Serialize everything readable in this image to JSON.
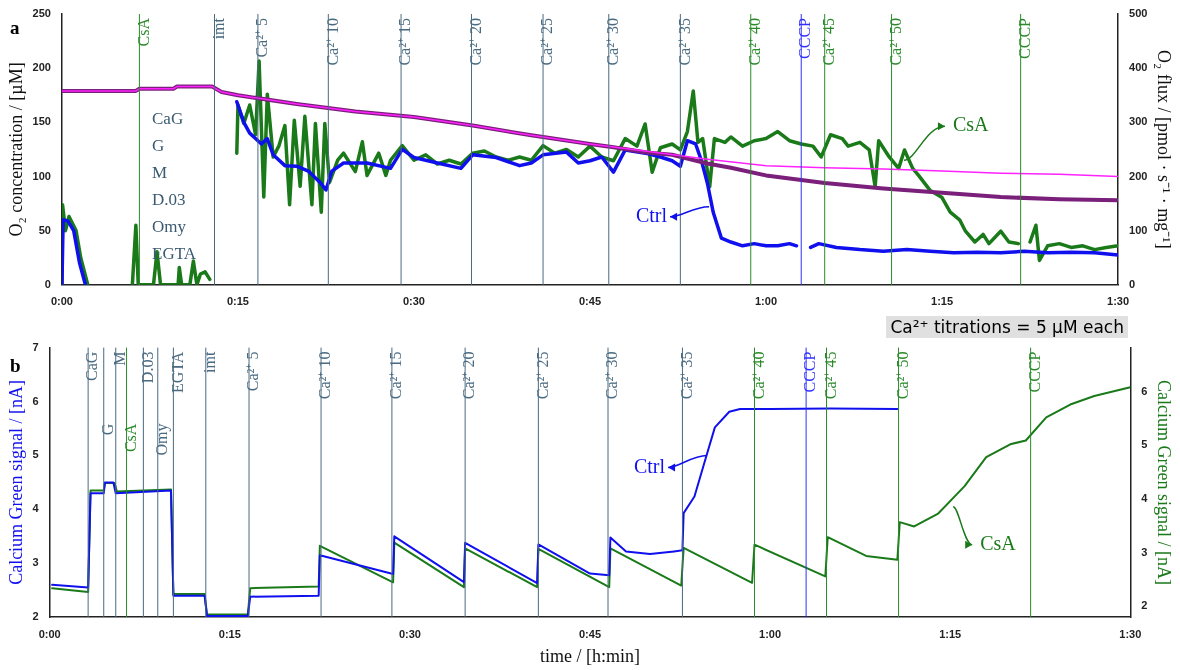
{
  "chart_data": [
    {
      "type": "line",
      "title": "a",
      "ylabel": "O₂ concentration / [µM]",
      "y2label": "O₂ flux / [pmol · s⁻¹ · mg⁻¹]",
      "xlim": [
        0,
        90
      ],
      "xticks": [
        {
          "value": 0,
          "label": "0:00"
        },
        {
          "value": 15,
          "label": "0:15"
        },
        {
          "value": 30,
          "label": "0:30"
        },
        {
          "value": 45,
          "label": "0:45"
        },
        {
          "value": 60,
          "label": "1:00"
        },
        {
          "value": 75,
          "label": "1:15"
        },
        {
          "value": 90,
          "label": "1:30"
        }
      ],
      "ylim": [
        0,
        250
      ],
      "yticks": [
        0,
        50,
        100,
        150,
        200,
        250
      ],
      "y2lim": [
        0,
        500
      ],
      "y2ticks": [
        0,
        100,
        200,
        300,
        400,
        500
      ],
      "grid": false,
      "legend": false,
      "marker": "none",
      "line_style": "solid",
      "series": [
        {
          "color": "#ff22ff",
          "x": [
            0,
            6.3,
            6.6,
            9.5,
            9.8,
            12.8,
            13.6,
            15,
            20,
            25,
            30,
            35,
            40,
            45,
            50,
            55,
            60,
            65,
            70,
            75,
            80,
            85,
            90
          ],
          "values": [
            179,
            179,
            181,
            181,
            183,
            183,
            178,
            175,
            167,
            160,
            155,
            147,
            138,
            130,
            123,
            116,
            110,
            108,
            107,
            105,
            103,
            102,
            100
          ]
        },
        {
          "color": "#7a1f7a",
          "x": [
            0,
            6.3,
            6.6,
            9.5,
            9.8,
            12.8,
            13.6,
            15,
            20,
            25,
            30,
            35,
            40,
            45,
            47,
            50,
            52,
            55,
            57,
            60,
            65,
            70,
            75,
            80,
            85,
            90
          ],
          "values": [
            179,
            179,
            181,
            181,
            183,
            183,
            178,
            175,
            167,
            160,
            155,
            147,
            138,
            130,
            127,
            122,
            120,
            112,
            108,
            101,
            94,
            89,
            85,
            81,
            79,
            78
          ]
        },
        {
          "color": "#1010ee",
          "axis": "y2",
          "x": [
            0,
            0.1,
            0.5,
            1,
            1.5,
            2,
            2.1,
            14.9,
            15.5,
            16,
            17,
            17.5,
            18,
            19,
            20,
            21,
            22,
            22.5,
            23,
            24,
            26,
            28,
            29,
            30,
            32,
            34,
            35,
            37,
            39,
            40,
            41,
            43,
            44,
            45,
            46,
            47,
            48,
            50,
            51,
            52,
            52.7,
            53.3,
            54,
            54.5,
            55,
            55.5,
            56.2,
            57,
            58,
            59,
            60,
            61,
            62,
            62.6,
            63,
            63.8,
            64.5,
            66,
            68,
            70,
            72,
            74,
            76,
            78,
            80,
            82,
            84,
            86,
            88,
            90
          ],
          "values": [
            0,
            120,
            118,
            100,
            40,
            0,
            null,
            338,
            300,
            280,
            260,
            270,
            240,
            220,
            219,
            210,
            189,
            175,
            210,
            225,
            225,
            215,
            250,
            235,
            225,
            215,
            240,
            235,
            220,
            225,
            240,
            245,
            225,
            229,
            236,
            208,
            249,
            242,
            236,
            229,
            219,
            266,
            260,
            229,
            188,
            134,
            86,
            79,
            72,
            76,
            72,
            72,
            76,
            72,
            null,
            69,
            76,
            69,
            65,
            62,
            65,
            62,
            59,
            60,
            59,
            62,
            59,
            60,
            59,
            55
          ]
        },
        {
          "color": "#1a7a1a",
          "axis": "y2",
          "x": [
            0,
            0.05,
            0.3,
            0.6,
            1.2,
            1.6,
            2.2,
            2.3,
            6,
            6.3,
            6.5,
            7.8,
            8.1,
            8.4,
            9.9,
            10,
            10.2,
            10.9,
            11.2,
            11.5,
            11.8,
            12.2,
            12.6,
            12.7,
            14.9,
            15,
            15.5,
            16,
            16.5,
            16.8,
            17.2,
            17.5,
            18,
            18.5,
            19,
            19.4,
            19.8,
            20.3,
            20.7,
            21.3,
            21.6,
            22.1,
            22.4,
            22.8,
            23.5,
            24,
            25,
            25.6,
            26,
            27,
            27.6,
            28,
            29,
            30,
            31,
            32,
            33,
            34,
            35,
            36,
            37,
            38,
            39,
            40,
            41,
            42,
            43,
            44,
            45,
            46,
            47,
            48,
            49,
            49.7,
            50.3,
            51,
            52,
            52.7,
            53.3,
            53.8,
            54.2,
            54.6,
            55.2,
            55.6,
            56.5,
            57,
            58,
            59,
            60,
            61,
            62,
            63,
            64,
            64.7,
            65.5,
            66.5,
            67,
            68,
            68.8,
            69.3,
            69.6,
            70.5,
            71.3,
            71.8,
            72.5,
            73,
            74,
            75,
            75.7,
            76.5,
            77,
            77.8,
            78.5,
            79,
            80,
            80.7,
            81.5,
            82,
            82.5,
            83,
            83.3,
            84,
            85,
            86,
            87,
            88,
            89,
            90
          ],
          "values": [
            0,
            148,
            100,
            126,
            100,
            50,
            0,
            null,
            0,
            110,
            0,
            0,
            61,
            0,
            0,
            32,
            0,
            0,
            44,
            0,
            20,
            24,
            10,
            null,
            243,
            332,
            298,
            332,
            277,
            413,
            162,
            352,
            236,
            257,
            294,
            148,
            304,
            182,
            311,
            148,
            298,
            134,
            298,
            189,
            230,
            243,
            209,
            264,
            202,
            243,
            202,
            230,
            257,
            230,
            240,
            223,
            230,
            223,
            243,
            247,
            236,
            230,
            236,
            230,
            257,
            243,
            250,
            236,
            256,
            236,
            229,
            270,
            256,
            297,
            208,
            253,
            260,
            249,
            283,
            358,
            263,
            270,
            181,
            270,
            263,
            273,
            256,
            266,
            270,
            283,
            266,
            260,
            256,
            236,
            277,
            270,
            256,
            263,
            249,
            181,
            266,
            236,
            215,
            249,
            215,
            202,
            174,
            161,
            134,
            120,
            99,
            79,
            93,
            76,
            99,
            79,
            76,
            null,
            79,
            110,
            45,
            72,
            76,
            69,
            72,
            65,
            69,
            72
          ]
        }
      ],
      "ref_lines": [
        {
          "axis": "x",
          "value": 6.6,
          "label": "CsA",
          "color": "#2a8a2a"
        },
        {
          "axis": "x",
          "value": 13,
          "label": "imt",
          "color": "#4a6a80"
        },
        {
          "axis": "x",
          "value": 16.7,
          "label": "Ca²⁺ 5",
          "color": "#4a6a80"
        },
        {
          "axis": "x",
          "value": 22.7,
          "label": "Ca²⁺ 10",
          "color": "#4a6a80"
        },
        {
          "axis": "x",
          "value": 28.9,
          "label": "Ca²⁺ 15",
          "color": "#4a6a80"
        },
        {
          "axis": "x",
          "value": 34.9,
          "label": "Ca²⁺ 20",
          "color": "#4a6a80"
        },
        {
          "axis": "x",
          "value": 41,
          "label": "Ca²⁺ 25",
          "color": "#4a6a80"
        },
        {
          "axis": "x",
          "value": 46.6,
          "label": "Ca²⁺ 30",
          "color": "#4a6a80"
        },
        {
          "axis": "x",
          "value": 52.7,
          "label": "Ca²⁺ 35",
          "color": "#4a6a80"
        },
        {
          "axis": "x",
          "value": 58.7,
          "label": "Ca²⁺ 40",
          "color": "#2a8a2a"
        },
        {
          "axis": "x",
          "value": 63,
          "label": "CCCP",
          "color": "#3030ff"
        },
        {
          "axis": "x",
          "value": 65,
          "label": "Ca²⁺ 45",
          "color": "#2a8a2a"
        },
        {
          "axis": "x",
          "value": 70.7,
          "label": "Ca²⁺ 50",
          "color": "#2a8a2a"
        },
        {
          "axis": "x",
          "value": 81.7,
          "label": "CCCP",
          "color": "#2a8a2a"
        }
      ],
      "annotations": [
        "CaG\nG\nM\nD.03\nOmy\nEGTA",
        "Ca²⁺ titrations = 5 µM each",
        {
          "text": "Ctrl",
          "x": 55.4,
          "y": 72
        },
        {
          "text": "CsA",
          "x": 71.5,
          "y": 115
        }
      ]
    },
    {
      "type": "line",
      "title": "b",
      "xlabel": "time / [h:min]",
      "ylabel": "Calcium Green signal / [nA]",
      "y2label": "Calcium Green signal / [nA]",
      "xlim": [
        0,
        90
      ],
      "xticks": [
        {
          "value": 0,
          "label": "0:00"
        },
        {
          "value": 15,
          "label": "0:15"
        },
        {
          "value": 30,
          "label": "0:30"
        },
        {
          "value": 45,
          "label": "0:45"
        },
        {
          "value": 60,
          "label": "1:00"
        },
        {
          "value": 75,
          "label": "1:15"
        },
        {
          "value": 90,
          "label": "1:30"
        }
      ],
      "ylim": [
        2,
        7
      ],
      "yticks": [
        2,
        3,
        4,
        5,
        6,
        7
      ],
      "y2lim": [
        1.8,
        6.82
      ],
      "y2ticks": [
        2,
        3,
        4,
        5,
        6
      ],
      "grid": false,
      "legend": false,
      "marker": "none",
      "line_style": "solid",
      "series": [
        {
          "color": "#1010ee",
          "x": [
            0.2,
            3.2,
            3.4,
            4.5,
            4.6,
            5.3,
            5.5,
            10.1,
            10.3,
            12.9,
            13.1,
            16.5,
            16.7,
            22.4,
            22.5,
            28.6,
            28.7,
            34.5,
            34.6,
            40.6,
            40.7,
            45,
            46.6,
            46.7,
            48,
            50,
            52,
            52.7,
            52.8,
            53.7,
            54.6,
            55.4,
            56.6,
            57.5,
            60,
            65,
            70.6
          ],
          "values": [
            2.6,
            2.55,
            4.3,
            4.3,
            4.5,
            4.5,
            4.3,
            4.35,
            2.4,
            2.4,
            2.02,
            2.02,
            2.38,
            2.4,
            3.15,
            2.8,
            3.5,
            2.65,
            3.38,
            2.63,
            3.35,
            2.81,
            2.78,
            3.48,
            3.22,
            3.17,
            3.22,
            3.24,
            3.93,
            4.24,
            4.92,
            5.52,
            5.81,
            5.86,
            5.86,
            5.87,
            5.86
          ]
        },
        {
          "color": "#1a7a1a",
          "axis": "y2",
          "x": [
            0.2,
            3.2,
            3.4,
            4.5,
            4.6,
            5.4,
            5.6,
            10.1,
            10.3,
            12.9,
            13.1,
            16.5,
            16.7,
            22.4,
            22.5,
            28.6,
            28.7,
            34.5,
            34.6,
            40.6,
            40.7,
            46.6,
            46.7,
            52.6,
            52.8,
            58.5,
            58.7,
            64.6,
            64.8,
            68,
            70.6,
            70.8,
            72,
            74,
            76.2,
            78,
            80,
            81.3,
            83,
            85,
            87,
            90
          ],
          "values": [
            2.34,
            2.27,
            4.16,
            4.16,
            4.3,
            4.3,
            4.14,
            4.18,
            2.23,
            2.23,
            1.85,
            1.85,
            2.34,
            2.37,
            3.13,
            2.45,
            3.19,
            2.36,
            3.08,
            2.36,
            3.07,
            2.36,
            3.08,
            2.39,
            3.09,
            2.44,
            3.15,
            2.56,
            3.29,
            2.94,
            2.87,
            3.57,
            3.49,
            3.73,
            4.24,
            4.78,
            5.02,
            5.09,
            5.52,
            5.76,
            5.92,
            6.08
          ]
        }
      ],
      "ref_lines": [
        {
          "axis": "x",
          "value": 3.2,
          "label": "CaG",
          "color": "#4a6a80"
        },
        {
          "axis": "x",
          "value": 4.5,
          "label": "G",
          "color": "#4a6a80"
        },
        {
          "axis": "x",
          "value": 5.5,
          "label": "M",
          "color": "#4a6a80"
        },
        {
          "axis": "x",
          "value": 6.4,
          "label": "CsA",
          "color": "#2a8a2a"
        },
        {
          "axis": "x",
          "value": 7.8,
          "label": "D.03",
          "color": "#4a6a80"
        },
        {
          "axis": "x",
          "value": 9,
          "label": "Omy",
          "color": "#4a6a80"
        },
        {
          "axis": "x",
          "value": 10.3,
          "label": "EGTA",
          "color": "#4a6a80"
        },
        {
          "axis": "x",
          "value": 13,
          "label": "imt",
          "color": "#4a6a80"
        },
        {
          "axis": "x",
          "value": 16.6,
          "label": "Ca²⁺ 5",
          "color": "#4a6a80"
        },
        {
          "axis": "x",
          "value": 22.6,
          "label": "Ca²⁺ 10",
          "color": "#4a6a80"
        },
        {
          "axis": "x",
          "value": 28.5,
          "label": "Ca²⁺ 15",
          "color": "#4a6a80"
        },
        {
          "axis": "x",
          "value": 34.6,
          "label": "Ca²⁺ 20",
          "color": "#4a6a80"
        },
        {
          "axis": "x",
          "value": 40.7,
          "label": "Ca²⁺ 25",
          "color": "#4a6a80"
        },
        {
          "axis": "x",
          "value": 46.5,
          "label": "Ca²⁺ 30",
          "color": "#4a6a80"
        },
        {
          "axis": "x",
          "value": 52.7,
          "label": "Ca²⁺ 35",
          "color": "#4a6a80"
        },
        {
          "axis": "x",
          "value": 58.7,
          "label": "Ca²⁺ 40",
          "color": "#2a8a2a"
        },
        {
          "axis": "x",
          "value": 63,
          "label": "CCCP",
          "color": "#3030ff"
        },
        {
          "axis": "x",
          "value": 64.7,
          "label": "Ca²⁺ 45",
          "color": "#2a8a2a"
        },
        {
          "axis": "x",
          "value": 70.7,
          "label": "Ca²⁺ 50",
          "color": "#2a8a2a"
        },
        {
          "axis": "x",
          "value": 81.7,
          "label": "CCCP",
          "color": "#2a8a2a"
        }
      ],
      "annotations": [
        {
          "text": "Ctrl",
          "x": 55,
          "y": 5
        },
        {
          "text": "CsA",
          "x": 75,
          "y": 4.05
        }
      ]
    }
  ]
}
